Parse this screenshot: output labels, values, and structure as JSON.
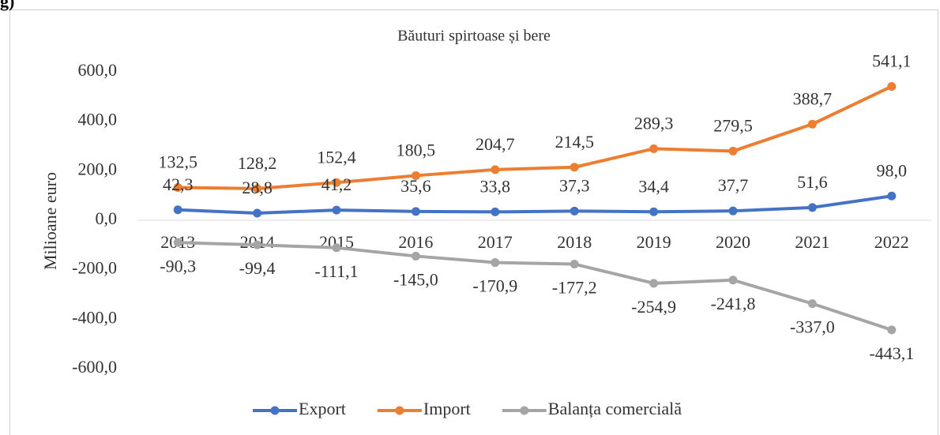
{
  "panel_label": "g)",
  "chart_data": {
    "type": "line",
    "title": "Băuturi spirtoase și bere",
    "y_label": "Milioane euro",
    "categories": [
      "2013",
      "2014",
      "2015",
      "2016",
      "2017",
      "2018",
      "2019",
      "2020",
      "2021",
      "2022"
    ],
    "series": [
      {
        "name": "Export",
        "color": "#4472c4",
        "values": [
          42.3,
          28.8,
          41.2,
          35.6,
          33.8,
          37.3,
          34.4,
          37.7,
          51.6,
          98.0
        ],
        "value_labels": [
          "42,3",
          "28,8",
          "41,2",
          "35,6",
          "33,8",
          "37,3",
          "34,4",
          "37,7",
          "51,6",
          "98,0"
        ]
      },
      {
        "name": "Import",
        "color": "#ed7d31",
        "values": [
          132.5,
          128.2,
          152.4,
          180.5,
          204.7,
          214.5,
          289.3,
          279.5,
          388.7,
          541.1
        ],
        "value_labels": [
          "132,5",
          "128,2",
          "152,4",
          "180,5",
          "204,7",
          "214,5",
          "289,3",
          "279,5",
          "388,7",
          "541,1"
        ]
      },
      {
        "name": "Balanța comercială",
        "color": "#a5a5a5",
        "values": [
          -90.3,
          -99.4,
          -111.1,
          -145.0,
          -170.9,
          -177.2,
          -254.9,
          -241.8,
          -337.0,
          -443.1
        ],
        "value_labels": [
          "-90,3",
          "-99,4",
          "-111,1",
          "-145,0",
          "-170,9",
          "-177,2",
          "-254,9",
          "-241,8",
          "-337,0",
          "-443,1"
        ]
      }
    ],
    "ylim": [
      -600,
      600
    ],
    "yticks": [
      {
        "value": -600,
        "label": "-600,0"
      },
      {
        "value": -400,
        "label": "-400,0"
      },
      {
        "value": -200,
        "label": "-200,0"
      },
      {
        "value": 0,
        "label": "0,0"
      },
      {
        "value": 200,
        "label": "200,0"
      },
      {
        "value": 400,
        "label": "400,0"
      },
      {
        "value": 600,
        "label": "600,0"
      }
    ],
    "grid": false,
    "legend": "bottom"
  }
}
